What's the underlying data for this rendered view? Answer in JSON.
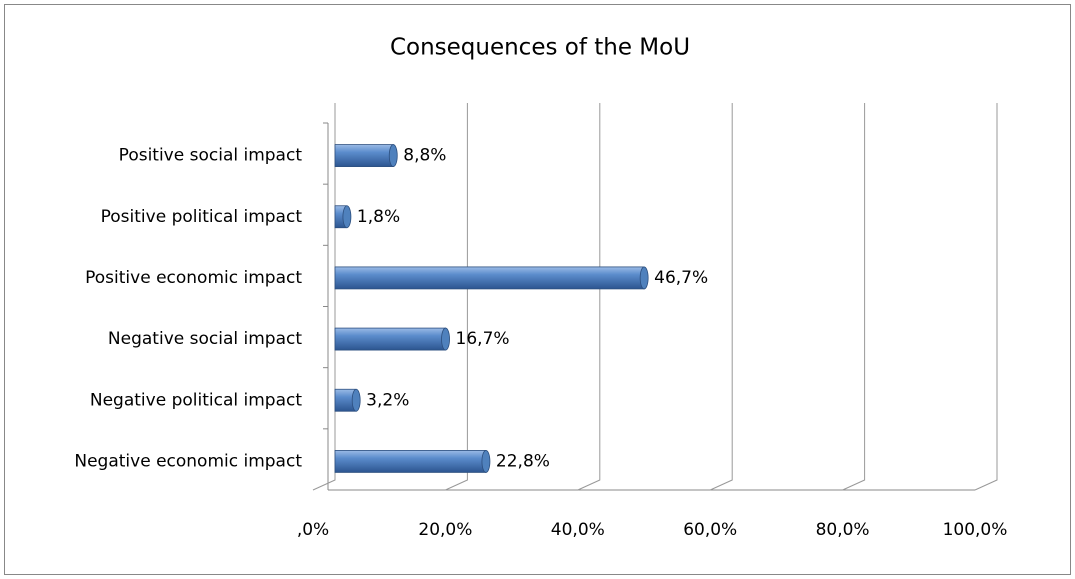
{
  "chart_data": {
    "type": "bar",
    "orientation": "horizontal",
    "title": "Consequences of the MoU",
    "categories": [
      "Positive social impact",
      "Positive political impact",
      "Positive economic impact",
      "Negative social impact",
      "Negative political impact",
      "Negative economic impact"
    ],
    "values": [
      8.8,
      1.8,
      46.7,
      16.7,
      3.2,
      22.8
    ],
    "value_labels": [
      "8,8%",
      "1,8%",
      "46,7%",
      "16,7%",
      "3,2%",
      "22,8%"
    ],
    "color": "#4f81bd",
    "xlim": [
      0,
      100
    ],
    "xticks": [
      {
        "value": 0,
        "label": ",0%"
      },
      {
        "value": 20,
        "label": "20,0%"
      },
      {
        "value": 40,
        "label": "40,0%"
      },
      {
        "value": 60,
        "label": "60,0%"
      },
      {
        "value": 80,
        "label": "80,0%"
      },
      {
        "value": 100,
        "label": "100,0%"
      }
    ],
    "grid": true
  }
}
